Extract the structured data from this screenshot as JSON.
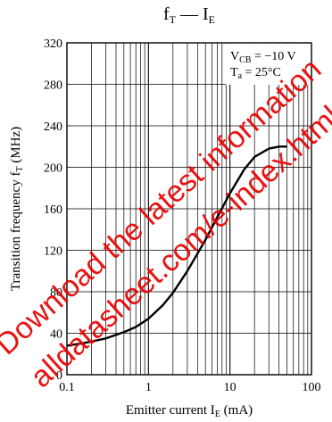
{
  "colors": {
    "watermark": "#e60000",
    "axis": "#000000",
    "curve": "#000000",
    "background": "#ffffff"
  },
  "chart_data": {
    "type": "line",
    "title": {
      "main": "f",
      "main_sub": "T",
      "dash": " — I",
      "dash_sub": "E"
    },
    "xlabel": {
      "text": "Emitter current  I",
      "sub": "E",
      "tail": "  (mA)"
    },
    "ylabel": {
      "text": "Transition frequency  f",
      "sub": "T",
      "tail": "  (MHz)"
    },
    "xscale": "log",
    "xlim": [
      0.1,
      100
    ],
    "ylim": [
      0,
      320
    ],
    "grid": true,
    "x_ticks": [
      "0.1",
      "1",
      "10",
      "100"
    ],
    "y_ticks": [
      "0",
      "40",
      "80",
      "120",
      "160",
      "200",
      "240",
      "280",
      "320"
    ],
    "conditions": [
      {
        "prefix": "V",
        "sub": "CB",
        "value": " = −10 V"
      },
      {
        "prefix": "T",
        "sub": "a",
        "value": " = 25°C"
      }
    ],
    "series": [
      {
        "x": [
          0.1,
          0.15,
          0.2,
          0.3,
          0.5,
          0.7,
          1,
          1.5,
          2,
          3,
          5,
          7,
          10,
          15,
          20,
          30,
          40,
          50
        ],
        "y": [
          28,
          30,
          32,
          35,
          41,
          46,
          54,
          67,
          79,
          100,
          130,
          152,
          175,
          198,
          210,
          218,
          220,
          220
        ]
      }
    ]
  },
  "watermark": [
    "Download the latest information",
    "alldatasheet.com/e-index.html"
  ]
}
